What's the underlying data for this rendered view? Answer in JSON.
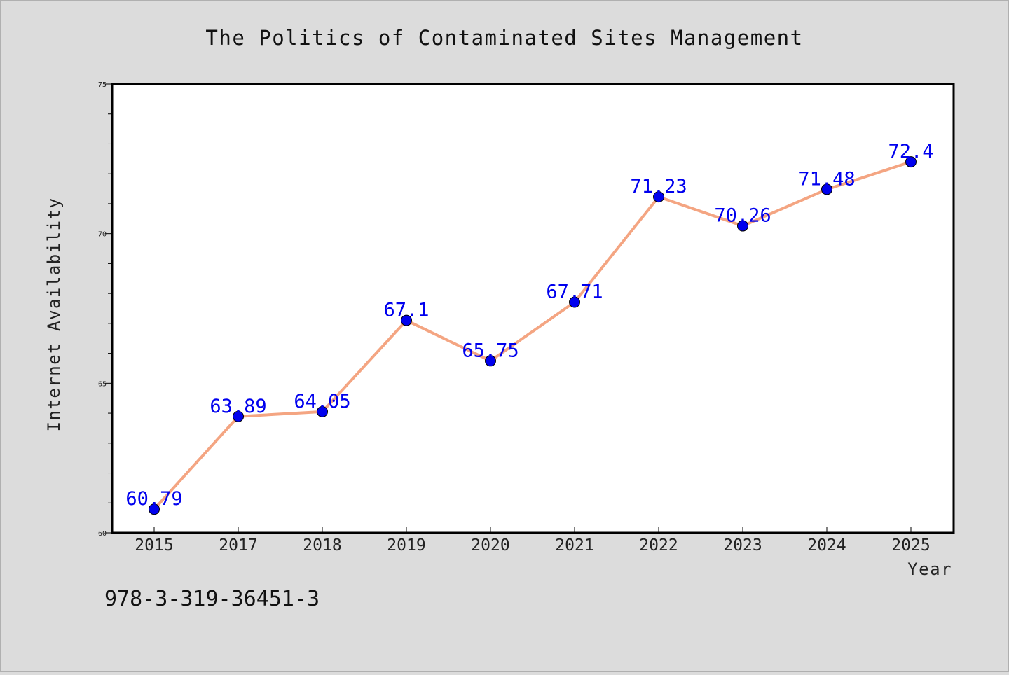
{
  "chart_data": {
    "type": "line",
    "title": "The Politics of Contaminated Sites Management",
    "xlabel": "Year",
    "ylabel": "Internet Availability",
    "categories": [
      "2015",
      "2017",
      "2018",
      "2019",
      "2020",
      "2021",
      "2022",
      "2023",
      "2024",
      "2025"
    ],
    "series": [
      {
        "values": [
          60.79,
          63.89,
          64.05,
          67.1,
          65.75,
          67.71,
          71.23,
          70.26,
          71.48,
          72.4
        ]
      }
    ],
    "data_labels": [
      "60.79",
      "63.89",
      "64.05",
      "67.1",
      "65.75",
      "67.71",
      "71.23",
      "70.26",
      "71.48",
      "72.4"
    ],
    "ylim": [
      60,
      75
    ],
    "yticks": [
      "60",
      "65",
      "70",
      "75"
    ],
    "grid": false,
    "legend": "none",
    "colors": {
      "line": "#f4a582",
      "marker": "#0000ee",
      "data_label": "#0000ee"
    }
  },
  "footnote": "978-3-319-36451-3"
}
